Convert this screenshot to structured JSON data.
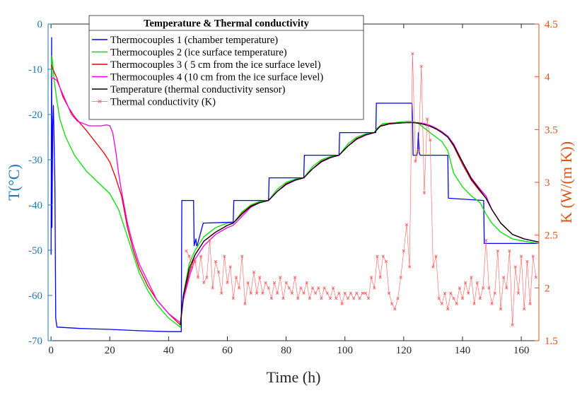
{
  "chart_data": {
    "type": "line",
    "title": "Temperature & Thermal conductivity",
    "xlabel": "Time (h)",
    "ylabel_left": "T(°C)",
    "ylabel_right": "K (W/(m K))",
    "xlim": [
      -1,
      166
    ],
    "ylim_left": [
      -70,
      0
    ],
    "ylim_right": [
      1.5,
      4.5
    ],
    "xticks": [
      0,
      20,
      40,
      60,
      80,
      100,
      120,
      140,
      160
    ],
    "xtick_labels": [
      "0",
      "20",
      "40",
      "60",
      "80",
      "100",
      "120",
      "140",
      "160"
    ],
    "yticks_left": [
      0,
      -10,
      -20,
      -30,
      -40,
      -50,
      -60,
      -70
    ],
    "ytick_labels_left": [
      "0",
      "-10",
      "-20",
      "-30",
      "-40",
      "-50",
      "-60",
      "-70"
    ],
    "yticks_right": [
      1.5,
      2,
      2.5,
      3,
      3.5,
      4,
      4.5
    ],
    "ytick_labels_right": [
      "1.5",
      "2",
      "2.5",
      "3",
      "3.5",
      "4",
      "4.5"
    ],
    "colors": {
      "left_axis": "#1f77b4",
      "right_axis": "#d95319"
    },
    "legend_position": "top-left",
    "series": [
      {
        "name": "Thermocouples 1 (chamber temperature)",
        "color": "#0000ff",
        "axis": "left",
        "x": [
          0,
          0.2,
          0.3,
          0.6,
          0.8,
          1.3,
          1.6,
          2.0,
          2.2,
          10,
          20,
          30,
          40,
          44.3,
          44.5,
          44.8,
          48.5,
          48.7,
          49.3,
          49.5,
          49.7,
          51.8,
          52.0,
          62.0,
          62.2,
          74.0,
          74.2,
          86.0,
          86.2,
          98.0,
          98.2,
          110.5,
          110.7,
          122.8,
          123.0,
          123.2,
          124.5,
          124.7,
          125.0,
          125.3,
          125.6,
          125.9,
          135.0,
          135.2,
          147.2,
          147.4,
          166
        ],
        "y": [
          -51,
          -3,
          -45,
          -22,
          -18,
          -35,
          -65,
          -67,
          -67,
          -67.3,
          -67.5,
          -67.8,
          -68,
          -68,
          -39,
          -39,
          -39,
          -49,
          -47.5,
          -49,
          -49,
          -44,
          -44,
          -43.8,
          -39,
          -39,
          -34,
          -34,
          -29,
          -29,
          -24,
          -24,
          -17.5,
          -17.5,
          -21,
          -29,
          -29,
          -28,
          -24,
          -28.5,
          -29,
          -29,
          -29,
          -38.5,
          -39,
          -48.5,
          -48.5
        ]
      },
      {
        "name": "Thermocouples 2 (ice surface temperature)",
        "color": "#00e000",
        "axis": "left",
        "x": [
          0,
          0.3,
          1,
          2,
          3,
          5,
          8,
          12,
          16,
          20,
          23,
          26,
          28,
          30,
          33,
          36,
          40,
          44,
          45,
          47,
          49,
          52,
          56,
          60,
          62,
          65,
          68,
          71,
          74,
          77,
          80,
          83,
          86,
          89,
          92,
          95,
          98,
          101,
          104,
          107,
          110,
          111,
          113,
          117,
          121,
          123,
          125,
          127,
          129,
          131,
          133,
          135,
          137,
          140,
          143,
          146,
          148,
          150,
          153,
          157,
          161,
          166
        ],
        "y": [
          -12,
          -7,
          -12,
          -17,
          -21,
          -25,
          -29,
          -32.5,
          -35,
          -37.5,
          -41,
          -47,
          -51,
          -55,
          -59,
          -62,
          -65,
          -67,
          -60,
          -53,
          -50,
          -47,
          -45,
          -44,
          -44,
          -41.5,
          -40,
          -39.2,
          -39,
          -36.5,
          -35,
          -34.3,
          -34,
          -31.5,
          -30,
          -29.3,
          -29,
          -26.5,
          -25,
          -24.3,
          -24,
          -23,
          -22,
          -21.8,
          -21.5,
          -21.5,
          -22,
          -23,
          -24,
          -25,
          -26,
          -28,
          -33,
          -36,
          -38,
          -39.5,
          -42,
          -44,
          -46,
          -47.5,
          -48,
          -48.5
        ]
      },
      {
        "name": "Thermocouples 3 ( 5 cm from the ice surface level)",
        "color": "#e00000",
        "axis": "left",
        "x": [
          0,
          1,
          2,
          3,
          4,
          6,
          8,
          10,
          12,
          15,
          18,
          20,
          22,
          24,
          26,
          28,
          30,
          33,
          36,
          40,
          44,
          45,
          47,
          49,
          52,
          56,
          60,
          62,
          65,
          68,
          71,
          74,
          77,
          80,
          83,
          86,
          89,
          92,
          95,
          98,
          101,
          104,
          107,
          110,
          112,
          115,
          118,
          121,
          123,
          125,
          127,
          129,
          131,
          133,
          135,
          137,
          140,
          143,
          146,
          148,
          150,
          153,
          157,
          161,
          166
        ],
        "y": [
          -9,
          -10.5,
          -12,
          -14,
          -16,
          -18.5,
          -20.5,
          -22,
          -23.5,
          -26,
          -28.5,
          -30.5,
          -34,
          -38,
          -45,
          -50,
          -54,
          -58,
          -61,
          -64,
          -66.5,
          -61,
          -55,
          -51,
          -48,
          -46,
          -44.5,
          -44,
          -41.8,
          -40.2,
          -39.4,
          -39,
          -37,
          -35.3,
          -34.5,
          -34,
          -32,
          -30.3,
          -29.5,
          -29,
          -27,
          -25.3,
          -24.5,
          -24,
          -22.5,
          -22,
          -21.9,
          -21.8,
          -21.8,
          -21.9,
          -22.2,
          -22.6,
          -23.2,
          -24,
          -25,
          -27,
          -31,
          -34.5,
          -37,
          -38.5,
          -41,
          -44,
          -46.5,
          -47.5,
          -48.2
        ]
      },
      {
        "name": "Thermocouples 4 (10 cm from the ice surface level)",
        "color": "#ee00ee",
        "axis": "left",
        "x": [
          0,
          1,
          2,
          3,
          5,
          7,
          9,
          11,
          13,
          15,
          17,
          19,
          20,
          21,
          22,
          23,
          24,
          26,
          28,
          30,
          33,
          36,
          40,
          44,
          45,
          47,
          49,
          52,
          56,
          60,
          62,
          65,
          68,
          71,
          74,
          77,
          80,
          83,
          86,
          89,
          92,
          95,
          98,
          101,
          104,
          107,
          110,
          112,
          115,
          118,
          121,
          123,
          125,
          127,
          129,
          131,
          133,
          135,
          137,
          140,
          143,
          146,
          148,
          150,
          153,
          157,
          161,
          166
        ],
        "y": [
          -12,
          -12,
          -12.5,
          -14,
          -17,
          -20,
          -21.5,
          -22,
          -22.5,
          -22.5,
          -22.5,
          -22.3,
          -22.5,
          -24,
          -28,
          -33,
          -37,
          -44,
          -49,
          -53,
          -57,
          -61,
          -64,
          -66,
          -61,
          -56,
          -52,
          -49,
          -46.5,
          -45,
          -44.5,
          -42.5,
          -40.5,
          -39.5,
          -39,
          -37,
          -35.5,
          -34.6,
          -34,
          -32,
          -30.5,
          -29.6,
          -29,
          -27,
          -25.5,
          -24.6,
          -24,
          -22.6,
          -22.1,
          -21.9,
          -21.8,
          -21.8,
          -21.8,
          -22,
          -22.4,
          -23,
          -23.8,
          -24.8,
          -26.5,
          -30.5,
          -34,
          -36.5,
          -38,
          -41,
          -44,
          -46.5,
          -47.5,
          -48.2
        ]
      },
      {
        "name": "Temperature (thermal conductivity sensor)",
        "color": "#000000",
        "axis": "left",
        "x": [
          44,
          45,
          47,
          49,
          52,
          56,
          60,
          62,
          65,
          68,
          71,
          74,
          77,
          80,
          83,
          86,
          89,
          92,
          95,
          98,
          101,
          104,
          107,
          110,
          112,
          115,
          118,
          121,
          123,
          125,
          127,
          129,
          131,
          133,
          135,
          137,
          140,
          143,
          146,
          148,
          150,
          153,
          157,
          161,
          166
        ],
        "y": [
          -66.5,
          -60,
          -54,
          -51,
          -48,
          -46,
          -44.5,
          -44,
          -42,
          -40.3,
          -39.5,
          -39,
          -37,
          -35.4,
          -34.5,
          -34,
          -32,
          -30.4,
          -29.5,
          -29,
          -27,
          -25.4,
          -24.5,
          -24,
          -22.6,
          -22.1,
          -21.9,
          -21.8,
          -21.8,
          -21.9,
          -22.2,
          -22.6,
          -23.2,
          -24,
          -25,
          -26.8,
          -30.5,
          -34.2,
          -36.8,
          -38.5,
          -41,
          -44,
          -46.5,
          -47.5,
          -48.2
        ]
      },
      {
        "name": "Thermal conductivity (K)",
        "color": "#ff5a5a",
        "axis": "right",
        "marker": "x",
        "x": [
          46,
          47,
          48,
          49,
          50,
          51,
          52,
          53,
          54,
          55,
          56,
          57,
          58,
          59,
          60,
          61,
          62,
          63,
          64,
          65,
          66,
          67,
          68,
          69,
          70,
          71,
          72,
          73,
          74,
          75,
          76,
          77,
          78,
          79,
          80,
          81,
          82,
          83,
          84,
          85,
          86,
          87,
          88,
          89,
          90,
          91,
          92,
          93,
          94,
          95,
          96,
          97,
          98,
          99,
          100,
          101,
          102,
          103,
          104,
          105,
          106,
          107,
          108,
          109,
          110,
          111,
          112,
          113,
          114,
          115,
          116,
          117,
          118,
          119,
          120,
          121,
          122,
          123,
          124,
          125,
          126,
          127,
          128,
          129,
          130,
          131,
          132,
          133,
          134,
          135,
          136,
          137,
          138,
          139,
          140,
          141,
          142,
          143,
          144,
          145,
          146,
          147,
          148,
          149,
          150,
          151,
          152,
          153,
          154,
          155,
          156,
          157,
          158,
          159,
          160,
          161,
          162,
          163,
          164,
          165
        ],
        "y": [
          2.35,
          2.3,
          2.2,
          2.25,
          2.1,
          2.3,
          2.05,
          2.1,
          2.45,
          2.0,
          2.25,
          2.15,
          1.95,
          2.3,
          2.05,
          2.2,
          1.9,
          2.1,
          2.0,
          2.3,
          1.85,
          2.05,
          1.95,
          2.15,
          1.95,
          2.1,
          1.95,
          2.05,
          2.0,
          1.9,
          2.05,
          1.95,
          2.1,
          1.9,
          2.05,
          2.0,
          1.95,
          2.1,
          1.9,
          2.0,
          1.95,
          2.05,
          1.9,
          2.0,
          1.95,
          2.0,
          1.9,
          2.0,
          1.95,
          1.9,
          2.0,
          1.9,
          1.95,
          1.85,
          1.95,
          1.9,
          1.95,
          1.9,
          1.95,
          1.9,
          1.95,
          1.95,
          1.9,
          2.1,
          2.0,
          2.3,
          2.1,
          2.3,
          2.25,
          1.95,
          1.85,
          1.8,
          1.9,
          2.1,
          2.35,
          2.6,
          2.2,
          4.22,
          3.2,
          3.3,
          4.1,
          2.9,
          3.6,
          3.4,
          2.2,
          2.3,
          1.9,
          1.85,
          1.95,
          1.8,
          1.95,
          1.9,
          1.85,
          2.0,
          1.9,
          2.05,
          1.95,
          2.1,
          1.85,
          2.05,
          1.9,
          2.0,
          2.45,
          2.0,
          1.85,
          1.95,
          2.35,
          1.8,
          2.1,
          2.0,
          2.35,
          1.65,
          2.2,
          1.95,
          2.3,
          1.8,
          2.25,
          1.85,
          2.3,
          2.1
        ]
      }
    ]
  }
}
